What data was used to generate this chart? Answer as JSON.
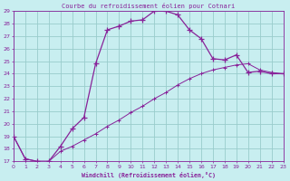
{
  "title": "Courbe du refroidissement éolien pour Cotnari",
  "xlabel": "Windchill (Refroidissement éolien,°C)",
  "bg_color": "#c8eef0",
  "grid_color": "#99cccc",
  "line_color": "#882299",
  "ylim": [
    17,
    29
  ],
  "xlim": [
    0,
    23
  ],
  "yticks": [
    17,
    18,
    19,
    20,
    21,
    22,
    23,
    24,
    25,
    26,
    27,
    28,
    29
  ],
  "xticks": [
    0,
    1,
    2,
    3,
    4,
    5,
    6,
    7,
    8,
    9,
    10,
    11,
    12,
    13,
    14,
    15,
    16,
    17,
    18,
    19,
    20,
    21,
    22,
    23
  ],
  "curve1_x": [
    0,
    1,
    2,
    3,
    4,
    5,
    6,
    7,
    8,
    9,
    10,
    11,
    12,
    13,
    14,
    15,
    16,
    17,
    18,
    19,
    20,
    21,
    22,
    23
  ],
  "curve1_y": [
    19.0,
    17.2,
    17.0,
    17.0,
    18.2,
    19.6,
    20.5,
    24.8,
    27.5,
    27.8,
    28.2,
    28.3,
    29.0,
    29.0,
    28.7,
    27.5,
    26.8,
    25.2,
    25.1,
    25.5,
    24.1,
    24.2,
    24.0,
    24.0
  ],
  "curve2_x": [
    0,
    1,
    2,
    3,
    4,
    5,
    6,
    7,
    8,
    9,
    10,
    11,
    12,
    13,
    14,
    15,
    16,
    17,
    18,
    19,
    20,
    21,
    22,
    23
  ],
  "curve2_y": [
    19.0,
    17.2,
    17.0,
    17.0,
    17.8,
    18.2,
    18.7,
    19.2,
    19.8,
    20.3,
    20.9,
    21.4,
    22.0,
    22.5,
    23.1,
    23.6,
    24.0,
    24.3,
    24.5,
    24.7,
    24.8,
    24.3,
    24.1,
    24.0
  ]
}
